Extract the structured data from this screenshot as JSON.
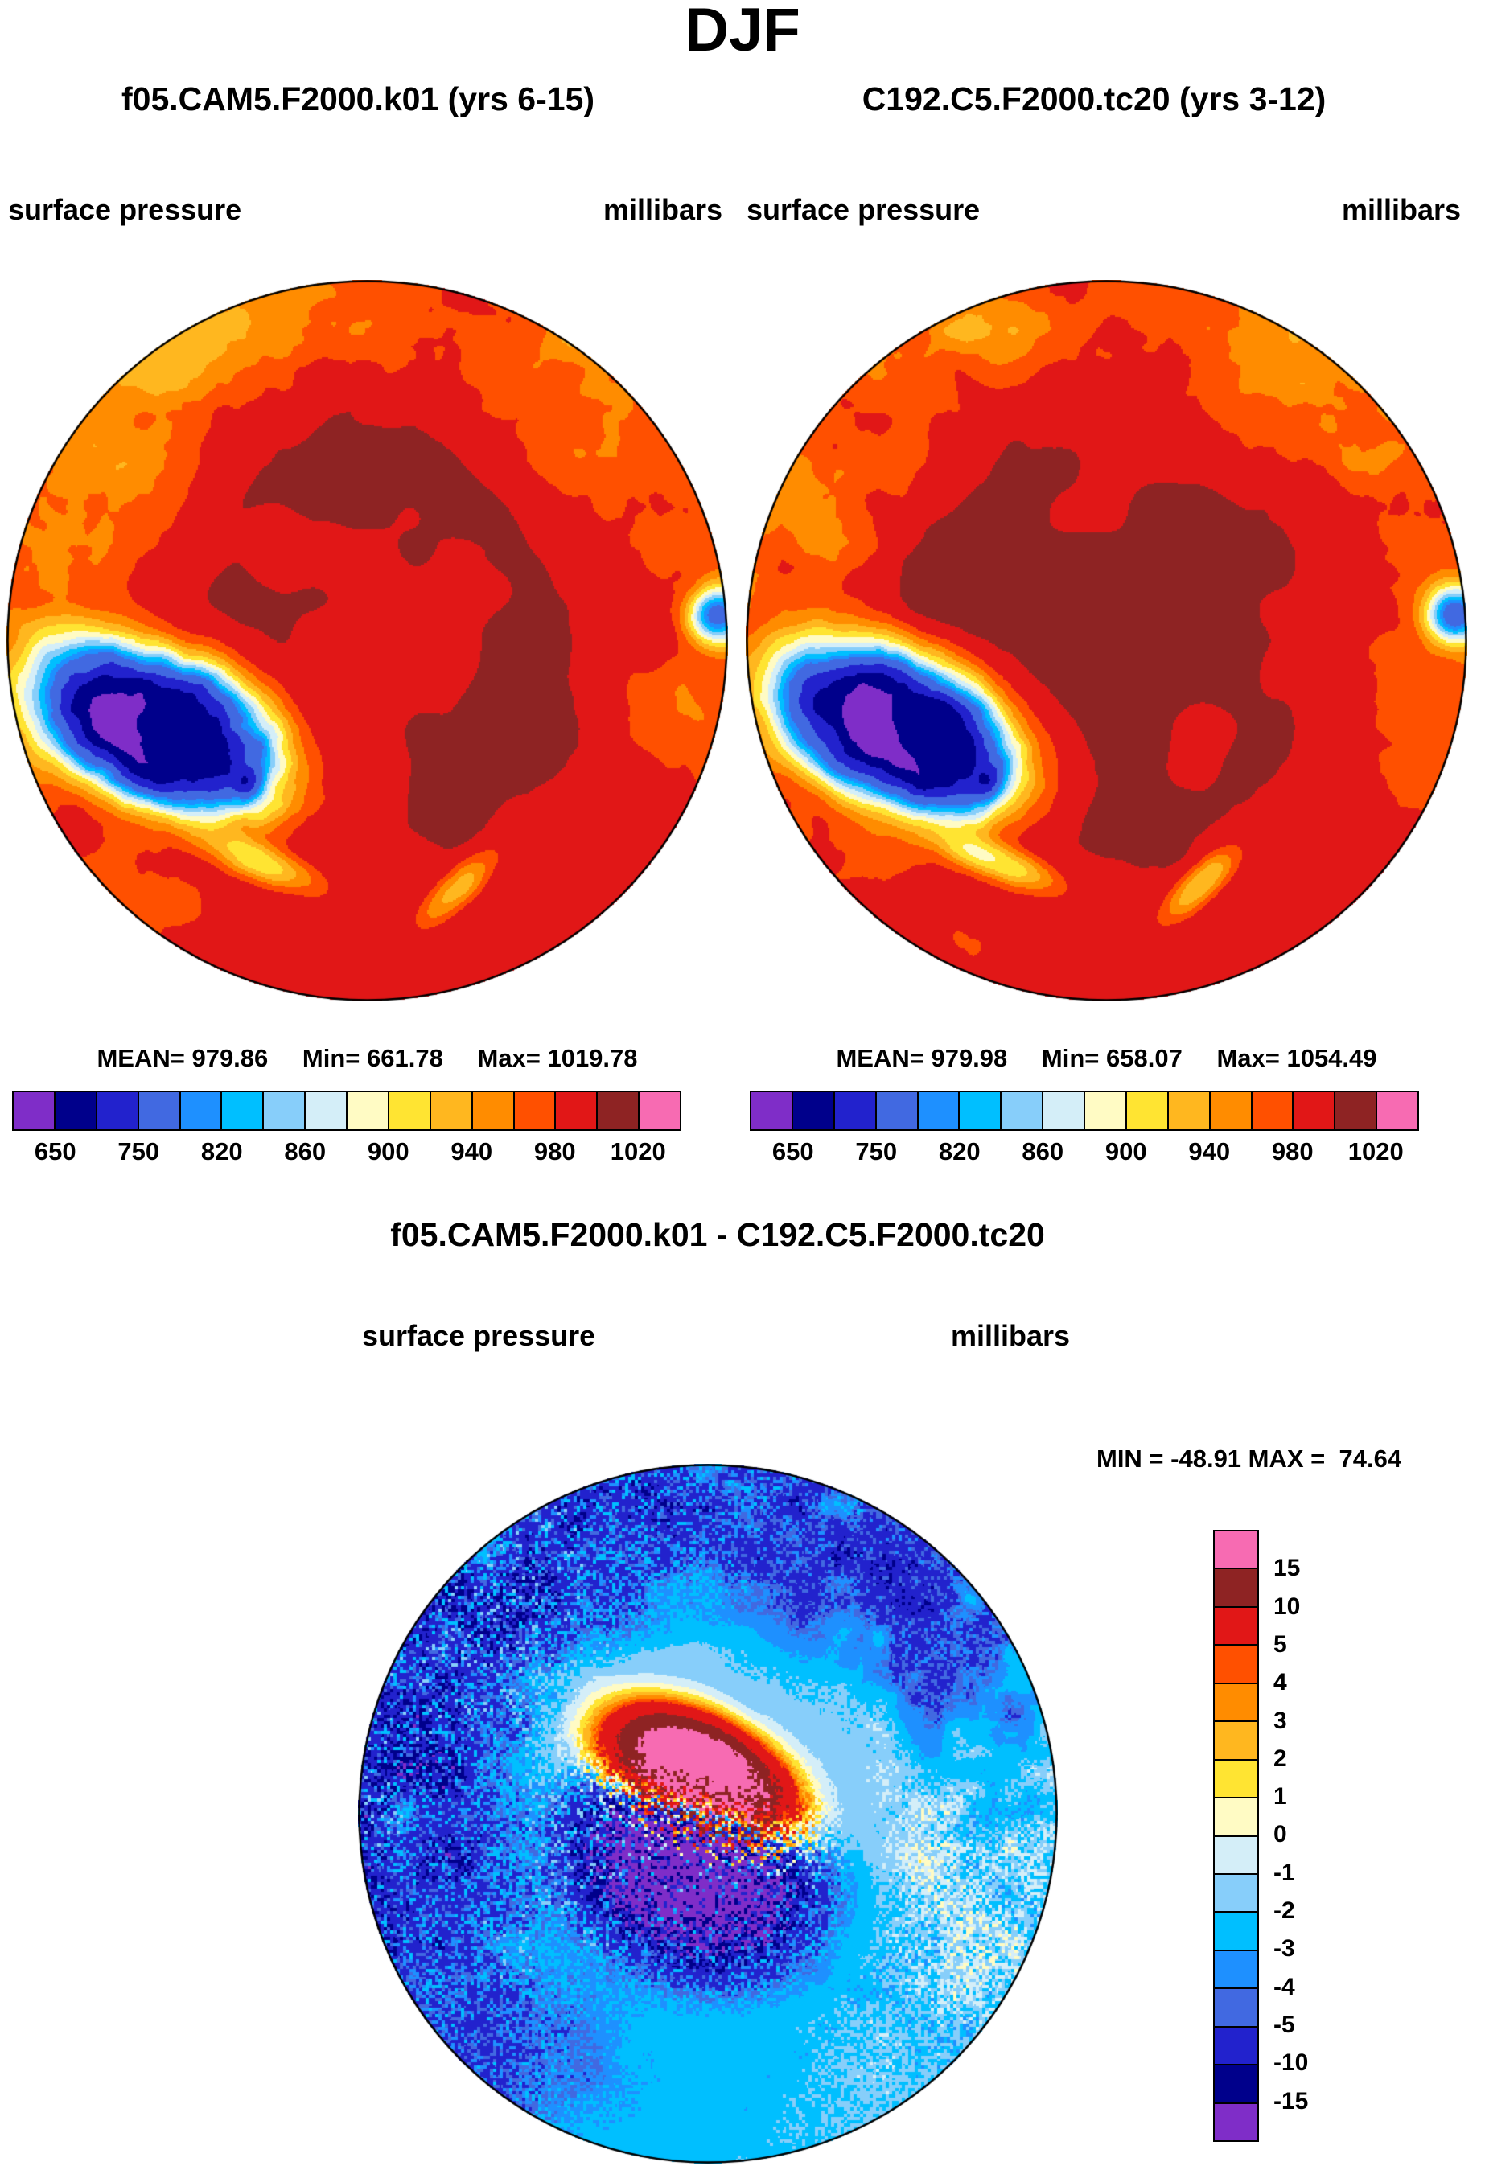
{
  "page": {
    "title": "DJF"
  },
  "panels": {
    "left": {
      "title": "f05.CAM5.F2000.k01 (yrs 6-15)",
      "field_label": "surface pressure",
      "units_label": "millibars",
      "stats": {
        "mean": "MEAN= 979.86",
        "min": "Min= 661.78",
        "max": "Max= 1019.78"
      }
    },
    "right": {
      "title": "C192.C5.F2000.tc20 (yrs 3-12)",
      "field_label": "surface pressure",
      "units_label": "millibars",
      "stats": {
        "mean": "MEAN= 979.98",
        "min": "Min= 658.07",
        "max": "Max= 1054.49"
      }
    },
    "diff": {
      "title": "f05.CAM5.F2000.k01 - C192.C5.F2000.tc20",
      "field_label": "surface pressure",
      "units_label": "millibars",
      "minmax": "MIN = -48.91 MAX =  74.64"
    }
  },
  "palette": [
    "#7F2DC8",
    "#00008B",
    "#2222CD",
    "#4169E1",
    "#1E90FF",
    "#00BFFF",
    "#87CEFA",
    "#D4EEF8",
    "#FFFBC4",
    "#FFE432",
    "#FFB71F",
    "#FF8C00",
    "#FF5000",
    "#E11717",
    "#8E2323",
    "#F76BB2"
  ],
  "legend_pressure": {
    "tick_labels": [
      "650",
      "750",
      "820",
      "860",
      "900",
      "940",
      "980",
      "1020"
    ],
    "tick_boundaries": [
      1,
      3,
      5,
      7,
      9,
      11,
      13,
      15
    ]
  },
  "legend_diff": {
    "tick_labels": [
      "15",
      "10",
      "5",
      "4",
      "3",
      "2",
      "1",
      "0",
      "-1",
      "-2",
      "-3",
      "-4",
      "-5",
      "-10",
      "-15"
    ]
  },
  "chart_data": [
    {
      "type": "heatmap",
      "panel": "top-left",
      "season": "DJF",
      "title": "f05.CAM5.F2000.k01 (yrs 6-15)",
      "variable": "surface pressure",
      "units": "millibars",
      "projection": "north polar stereographic",
      "mean": 979.86,
      "min": 661.78,
      "max": 1019.78,
      "contour_levels": [
        650,
        700,
        750,
        800,
        820,
        840,
        860,
        880,
        900,
        920,
        940,
        960,
        980,
        1000,
        1020
      ],
      "labeled_levels": [
        650,
        750,
        820,
        860,
        900,
        940,
        980,
        1020
      ],
      "legend_position": "bottom",
      "notes": "Arctic mostly 1000-1020 mb (dark red); deep low over Greenland (650-750, navy/blue); mountain belts near rim show 750-950 mottled blue/cyan/yellow/orange"
    },
    {
      "type": "heatmap",
      "panel": "top-right",
      "season": "DJF",
      "title": "C192.C5.F2000.tc20 (yrs 3-12)",
      "variable": "surface pressure",
      "units": "millibars",
      "projection": "north polar stereographic",
      "mean": 979.98,
      "min": 658.07,
      "max": 1054.49,
      "contour_levels": [
        650,
        700,
        750,
        800,
        820,
        840,
        860,
        880,
        900,
        920,
        940,
        960,
        980,
        1000,
        1020
      ],
      "labeled_levels": [
        650,
        750,
        820,
        860,
        900,
        940,
        980,
        1020
      ],
      "legend_position": "bottom"
    },
    {
      "type": "heatmap",
      "panel": "bottom",
      "title": "f05.CAM5.F2000.k01 - C192.C5.F2000.tc20",
      "variable": "surface pressure difference",
      "units": "millibars",
      "min": -48.91,
      "max": 74.64,
      "contour_levels": [
        -15,
        -10,
        -5,
        -4,
        -3,
        -2,
        -1,
        0,
        1,
        2,
        3,
        4,
        5,
        10,
        15
      ],
      "legend_position": "right",
      "notes": "Near-zero cream background; +15 and above pink over Greenland; speckled +/- differences over mountain belts; broad weak negative (blue) over right half"
    }
  ]
}
